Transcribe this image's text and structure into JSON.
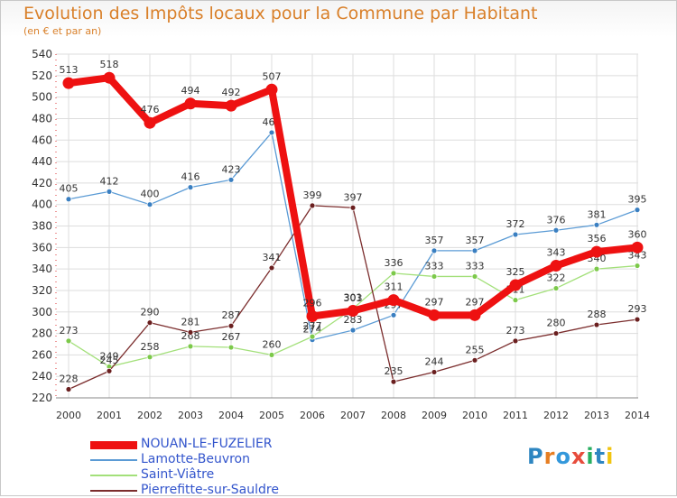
{
  "header": {
    "title": "Evolution des Impôts locaux pour la Commune par Habitant",
    "subtitle": "(en € et par an)"
  },
  "logo": {
    "text": "Proxiti",
    "letter_colors": [
      "#2e86c1",
      "#e67e22",
      "#3498db",
      "#e74c3c",
      "#27ae60",
      "#2e86c1",
      "#f1c40f"
    ]
  },
  "colors": {
    "title": "#d9802a",
    "axis_text": "#333333",
    "grid": "#dddddd",
    "legend_text": "#3355cc"
  },
  "chart_data": {
    "type": "line",
    "title": "Evolution des Impôts locaux pour la Commune par Habitant",
    "subtitle": "(en € et par an)",
    "xlabel": "",
    "ylabel": "",
    "ylim": [
      220,
      540
    ],
    "y_ticks": [
      220,
      240,
      260,
      280,
      300,
      320,
      340,
      360,
      380,
      400,
      420,
      440,
      460,
      480,
      500,
      520,
      540
    ],
    "grid": true,
    "legend_position": "bottom-left",
    "categories": [
      "2000",
      "2001",
      "2002",
      "2003",
      "2004",
      "2005",
      "2006",
      "2007",
      "2008",
      "2009",
      "2010",
      "2011",
      "2012",
      "2013",
      "2014"
    ],
    "series": [
      {
        "name": "Lamotte-Beuvron",
        "color": "#5b9bd5",
        "marker": "#3a7fc1",
        "values": [
          405,
          412,
          400,
          416,
          423,
          467,
          274,
          283,
          297,
          357,
          357,
          372,
          376,
          381,
          395
        ]
      },
      {
        "name": "Saint-Viâtre",
        "color": "#a3e07a",
        "marker": "#7cc94a",
        "values": [
          273,
          249,
          258,
          268,
          267,
          260,
          277,
          303,
          336,
          333,
          333,
          311,
          322,
          340,
          343
        ]
      },
      {
        "name": "Pierrefitte-sur-Sauldre",
        "color": "#7b2d2d",
        "marker": "#6a1f1f",
        "values": [
          228,
          245,
          290,
          281,
          287,
          341,
          399,
          397,
          235,
          244,
          255,
          273,
          280,
          288,
          293
        ]
      },
      {
        "name": "NOUAN-LE-FUZELIER",
        "color": "#ee1111",
        "marker": "#ee1111",
        "thick": true,
        "values": [
          513,
          518,
          476,
          494,
          492,
          507,
          296,
          301,
          311,
          297,
          297,
          325,
          343,
          356,
          360
        ]
      }
    ],
    "legend_order": [
      "NOUAN-LE-FUZELIER",
      "Lamotte-Beuvron",
      "Saint-Viâtre",
      "Pierrefitte-sur-Sauldre"
    ]
  }
}
